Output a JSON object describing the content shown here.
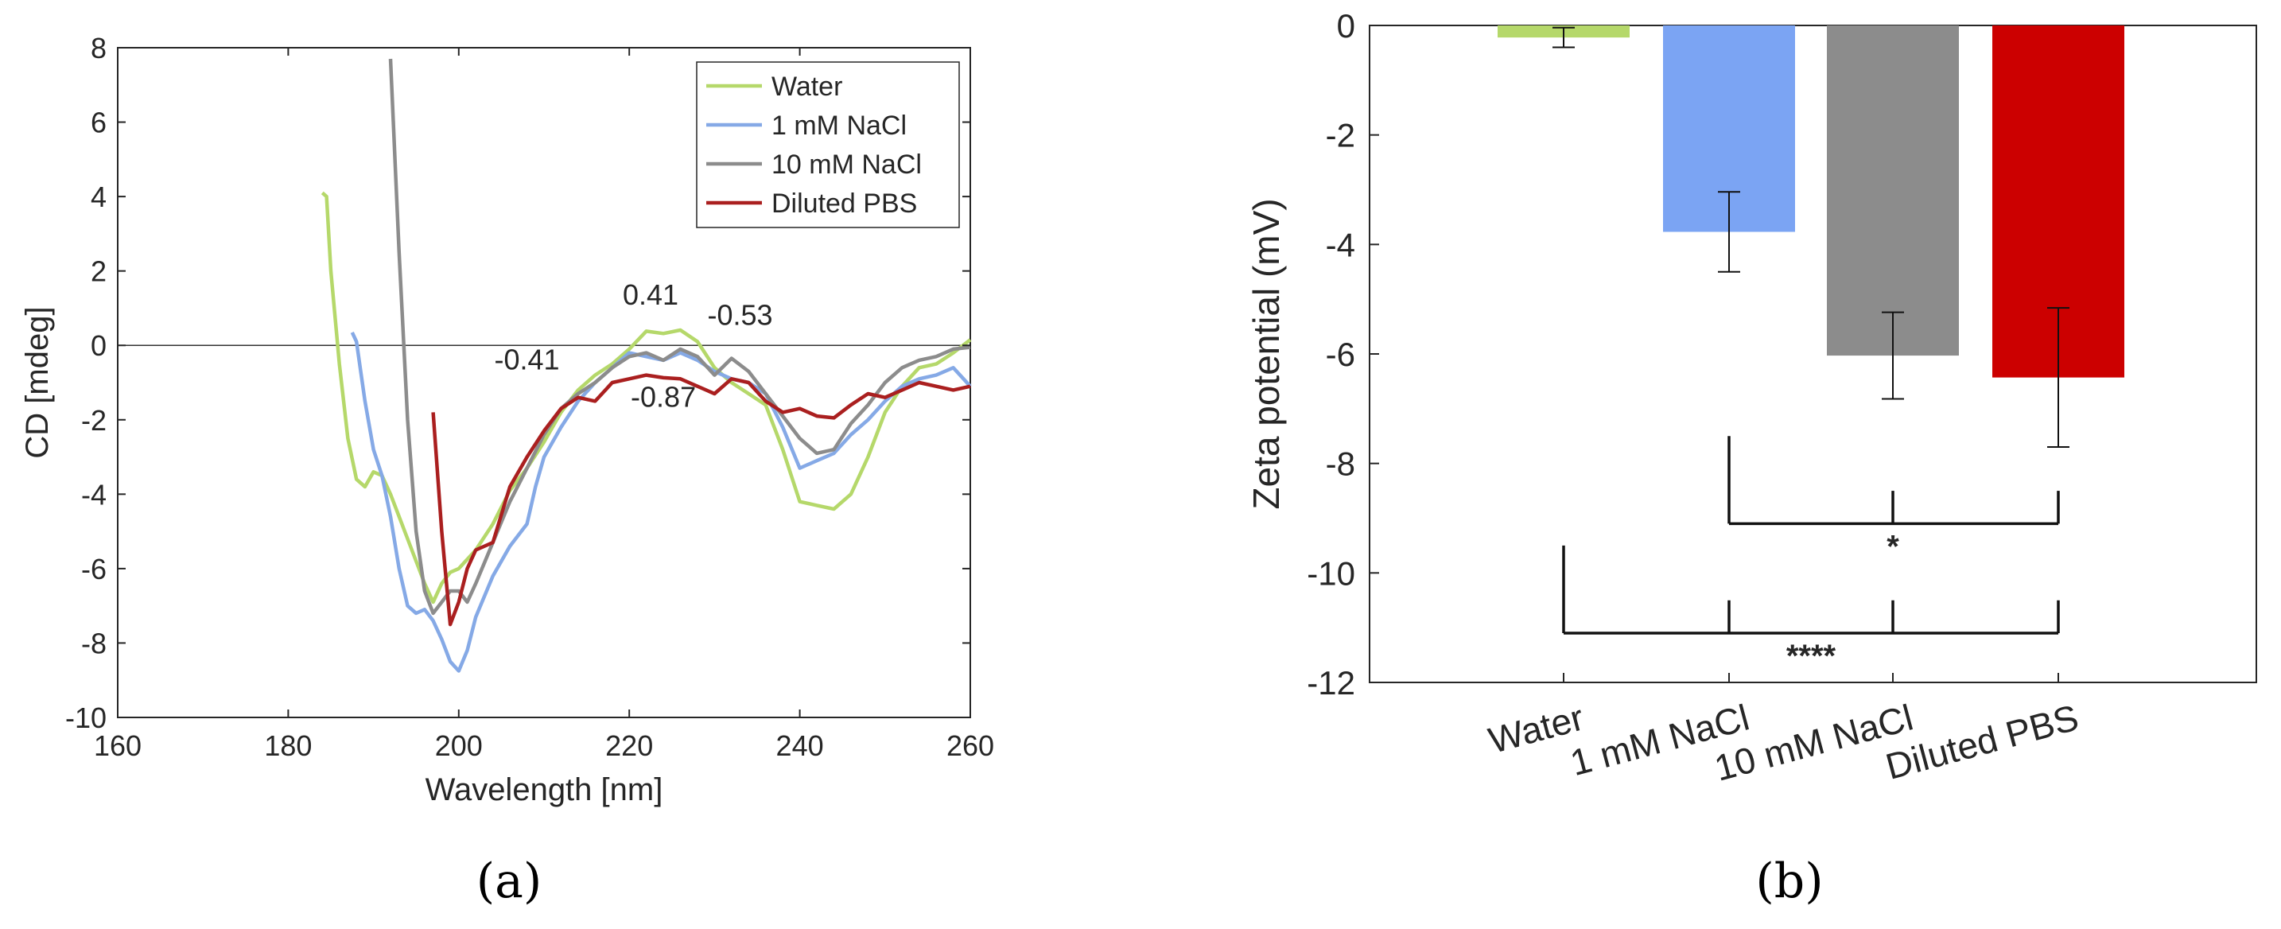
{
  "chart_data": [
    {
      "type": "line",
      "panel_label": "(a)",
      "xlabel": "Wavelength [nm]",
      "ylabel": "CD [mdeg]",
      "xlim": [
        160,
        260
      ],
      "ylim": [
        -10,
        8
      ],
      "xticks": [
        160,
        180,
        200,
        220,
        240,
        260
      ],
      "yticks": [
        -10,
        -8,
        -6,
        -4,
        -2,
        0,
        2,
        4,
        6,
        8
      ],
      "zero_line": true,
      "legend": {
        "position": "top-right"
      },
      "series": [
        {
          "name": "Water",
          "color": "#b5d86a",
          "points": [
            [
              184,
              4.1
            ],
            [
              184.5,
              4.0
            ],
            [
              185,
              2.0
            ],
            [
              186,
              -0.5
            ],
            [
              187,
              -2.5
            ],
            [
              188,
              -3.6
            ],
            [
              189,
              -3.8
            ],
            [
              190,
              -3.4
            ],
            [
              191,
              -3.5
            ],
            [
              192,
              -4.0
            ],
            [
              194,
              -5.2
            ],
            [
              196,
              -6.4
            ],
            [
              197,
              -6.9
            ],
            [
              198,
              -6.4
            ],
            [
              199,
              -6.1
            ],
            [
              200,
              -6.0
            ],
            [
              202,
              -5.5
            ],
            [
              204,
              -4.8
            ],
            [
              206,
              -3.9
            ],
            [
              208,
              -3.3
            ],
            [
              210,
              -2.6
            ],
            [
              212,
              -1.8
            ],
            [
              214,
              -1.2
            ],
            [
              216,
              -0.8
            ],
            [
              218,
              -0.5
            ],
            [
              220,
              -0.1
            ],
            [
              222,
              0.38
            ],
            [
              224,
              0.32
            ],
            [
              226,
              0.41
            ],
            [
              228,
              0.1
            ],
            [
              230,
              -0.6
            ],
            [
              232,
              -1.0
            ],
            [
              234,
              -1.3
            ],
            [
              236,
              -1.6
            ],
            [
              238,
              -2.8
            ],
            [
              240,
              -4.2
            ],
            [
              242,
              -4.3
            ],
            [
              244,
              -4.4
            ],
            [
              246,
              -4.0
            ],
            [
              248,
              -3.0
            ],
            [
              250,
              -1.8
            ],
            [
              252,
              -1.1
            ],
            [
              254,
              -0.6
            ],
            [
              256,
              -0.5
            ],
            [
              258,
              -0.2
            ],
            [
              260,
              0.15
            ]
          ]
        },
        {
          "name": "1 mM NaCl",
          "color": "#85a9e6",
          "points": [
            [
              187.5,
              0.35
            ],
            [
              188,
              0.1
            ],
            [
              189,
              -1.5
            ],
            [
              190,
              -2.8
            ],
            [
              191,
              -3.5
            ],
            [
              192,
              -4.6
            ],
            [
              193,
              -6.0
            ],
            [
              194,
              -7.0
            ],
            [
              195,
              -7.2
            ],
            [
              196,
              -7.1
            ],
            [
              197,
              -7.4
            ],
            [
              198,
              -7.9
            ],
            [
              199,
              -8.5
            ],
            [
              200,
              -8.75
            ],
            [
              201,
              -8.2
            ],
            [
              202,
              -7.3
            ],
            [
              204,
              -6.2
            ],
            [
              206,
              -5.4
            ],
            [
              208,
              -4.8
            ],
            [
              209,
              -3.8
            ],
            [
              210,
              -3.0
            ],
            [
              212,
              -2.2
            ],
            [
              214,
              -1.5
            ],
            [
              216,
              -1.0
            ],
            [
              218,
              -0.6
            ],
            [
              220,
              -0.2
            ],
            [
              222,
              -0.3
            ],
            [
              224,
              -0.4
            ],
            [
              226,
              -0.2
            ],
            [
              228,
              -0.4
            ],
            [
              230,
              -0.7
            ],
            [
              232,
              -0.9
            ],
            [
              234,
              -1.0
            ],
            [
              236,
              -1.3
            ],
            [
              238,
              -2.2
            ],
            [
              240,
              -3.3
            ],
            [
              242,
              -3.1
            ],
            [
              244,
              -2.9
            ],
            [
              246,
              -2.4
            ],
            [
              248,
              -2.0
            ],
            [
              250,
              -1.5
            ],
            [
              252,
              -1.1
            ],
            [
              254,
              -0.9
            ],
            [
              256,
              -0.8
            ],
            [
              258,
              -0.6
            ],
            [
              260,
              -1.1
            ]
          ]
        },
        {
          "name": "10 mM NaCl",
          "color": "#8c8c8c",
          "points": [
            [
              192,
              7.7
            ],
            [
              193,
              2.5
            ],
            [
              194,
              -2.0
            ],
            [
              195,
              -5.0
            ],
            [
              196,
              -6.6
            ],
            [
              197,
              -7.2
            ],
            [
              198,
              -6.9
            ],
            [
              199,
              -6.6
            ],
            [
              200,
              -6.6
            ],
            [
              201,
              -6.9
            ],
            [
              202,
              -6.4
            ],
            [
              204,
              -5.3
            ],
            [
              206,
              -4.2
            ],
            [
              208,
              -3.3
            ],
            [
              210,
              -2.4
            ],
            [
              212,
              -1.7
            ],
            [
              214,
              -1.3
            ],
            [
              216,
              -1.0
            ],
            [
              218,
              -0.6
            ],
            [
              220,
              -0.3
            ],
            [
              222,
              -0.2
            ],
            [
              224,
              -0.4
            ],
            [
              226,
              -0.1
            ],
            [
              228,
              -0.3
            ],
            [
              230,
              -0.8
            ],
            [
              232,
              -0.35
            ],
            [
              234,
              -0.7
            ],
            [
              236,
              -1.3
            ],
            [
              238,
              -1.9
            ],
            [
              240,
              -2.5
            ],
            [
              242,
              -2.9
            ],
            [
              244,
              -2.8
            ],
            [
              246,
              -2.1
            ],
            [
              248,
              -1.6
            ],
            [
              250,
              -1.0
            ],
            [
              252,
              -0.6
            ],
            [
              254,
              -0.4
            ],
            [
              256,
              -0.3
            ],
            [
              258,
              -0.1
            ],
            [
              260,
              -0.05
            ]
          ]
        },
        {
          "name": "Diluted PBS",
          "color": "#aa1f1f",
          "points": [
            [
              197,
              -1.8
            ],
            [
              198,
              -5.0
            ],
            [
              199,
              -7.5
            ],
            [
              200,
              -6.9
            ],
            [
              201,
              -6.0
            ],
            [
              202,
              -5.5
            ],
            [
              204,
              -5.3
            ],
            [
              206,
              -3.8
            ],
            [
              208,
              -3.0
            ],
            [
              210,
              -2.3
            ],
            [
              212,
              -1.7
            ],
            [
              214,
              -1.4
            ],
            [
              216,
              -1.5
            ],
            [
              218,
              -1.0
            ],
            [
              220,
              -0.9
            ],
            [
              222,
              -0.8
            ],
            [
              224,
              -0.87
            ],
            [
              226,
              -0.9
            ],
            [
              228,
              -1.1
            ],
            [
              230,
              -1.3
            ],
            [
              232,
              -0.9
            ],
            [
              234,
              -1.0
            ],
            [
              236,
              -1.5
            ],
            [
              238,
              -1.8
            ],
            [
              240,
              -1.7
            ],
            [
              242,
              -1.9
            ],
            [
              244,
              -1.95
            ],
            [
              246,
              -1.6
            ],
            [
              248,
              -1.3
            ],
            [
              250,
              -1.4
            ],
            [
              252,
              -1.2
            ],
            [
              254,
              -1.0
            ],
            [
              256,
              -1.1
            ],
            [
              258,
              -1.2
            ],
            [
              260,
              -1.1
            ]
          ]
        }
      ],
      "annotations": [
        {
          "text": "0.41",
          "x": 222.5,
          "y": 1.1,
          "color": "#b5d86a"
        },
        {
          "text": "-0.53",
          "x": 233,
          "y": 0.55,
          "color": "#8c8c8c"
        },
        {
          "text": "-0.41",
          "x": 208,
          "y": -0.65,
          "color": "#85a9e6"
        },
        {
          "text": "-0.87",
          "x": 224,
          "y": -1.65,
          "color": "#aa1f1f"
        }
      ]
    },
    {
      "type": "bar",
      "panel_label": "(b)",
      "categories": [
        "Water",
        "1 mM NaCl",
        "10 mM NaCl",
        "Diluted PBS"
      ],
      "values": [
        -0.22,
        -3.77,
        -6.03,
        -6.43
      ],
      "errors": [
        0.18,
        0.73,
        0.79,
        1.27
      ],
      "colors": [
        "#b5d86a",
        "#7ba4f3",
        "#8c8c8c",
        "#cc0000"
      ],
      "ylabel": "Zeta potential (mV)",
      "ylim": [
        -12,
        0
      ],
      "yticks": [
        -12,
        -10,
        -8,
        -6,
        -4,
        -2,
        0
      ],
      "significance": [
        {
          "label": "*",
          "from": 1,
          "to": 3,
          "middle": 2,
          "level": -9.1
        },
        {
          "label": "****",
          "from": 0,
          "to": 3,
          "middle": [
            1,
            2
          ],
          "level": -11.1
        }
      ]
    }
  ]
}
